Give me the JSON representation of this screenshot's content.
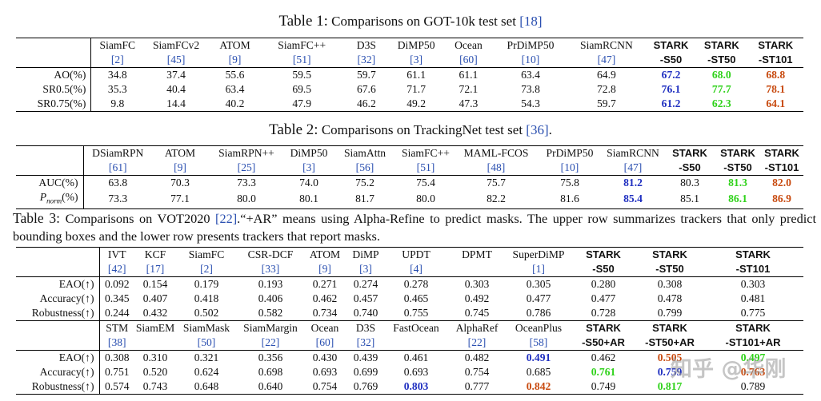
{
  "table1": {
    "label": "Table 1:",
    "title": "Comparisons on GOT-10k test set",
    "ref": "[18]",
    "headers": [
      {
        "name": "SiamFC",
        "ref": "[2]"
      },
      {
        "name": "SiamFCv2",
        "ref": "[45]"
      },
      {
        "name": "ATOM",
        "ref": "[9]"
      },
      {
        "name": "SiamFC++",
        "ref": "[51]"
      },
      {
        "name": "D3S",
        "ref": "[32]"
      },
      {
        "name": "DiMP50",
        "ref": "[3]"
      },
      {
        "name": "Ocean",
        "ref": "[60]"
      },
      {
        "name": "PrDiMP50",
        "ref": "[10]"
      },
      {
        "name": "SiamRCNN",
        "ref": "[47]"
      },
      {
        "name": "STARK",
        "ref": "-S50",
        "bold": true
      },
      {
        "name": "STARK",
        "ref": "-ST50",
        "bold": true
      },
      {
        "name": "STARK",
        "ref": "-ST101",
        "bold": true
      }
    ],
    "rows": [
      {
        "label": "AO(%)",
        "values": [
          "34.8",
          "37.4",
          "55.6",
          "59.5",
          "59.7",
          "61.1",
          "61.1",
          "63.4",
          "64.9",
          "67.2",
          "68.0",
          "68.8"
        ],
        "colors": [
          "",
          "",
          "",
          "",
          "",
          "",
          "",
          "",
          "",
          "blue",
          "green",
          "red"
        ]
      },
      {
        "label": "SR0.5(%)",
        "values": [
          "35.3",
          "40.4",
          "63.4",
          "69.5",
          "67.6",
          "71.7",
          "72.1",
          "73.8",
          "72.8",
          "76.1",
          "77.7",
          "78.1"
        ],
        "colors": [
          "",
          "",
          "",
          "",
          "",
          "",
          "",
          "",
          "",
          "blue",
          "green",
          "red"
        ]
      },
      {
        "label": "SR0.75(%)",
        "values": [
          "9.8",
          "14.4",
          "40.2",
          "47.9",
          "46.2",
          "49.2",
          "47.3",
          "54.3",
          "59.7",
          "61.2",
          "62.3",
          "64.1"
        ],
        "colors": [
          "",
          "",
          "",
          "",
          "",
          "",
          "",
          "",
          "",
          "blue",
          "green",
          "red"
        ]
      }
    ]
  },
  "table2": {
    "label": "Table 2:",
    "title": "Comparisons on TrackingNet test set",
    "ref": "[36]",
    "suffix": ".",
    "headers": [
      {
        "name": "DSiamRPN",
        "ref": "[61]"
      },
      {
        "name": "ATOM",
        "ref": "[9]"
      },
      {
        "name": "SiamRPN++",
        "ref": "[25]"
      },
      {
        "name": "DiMP50",
        "ref": "[3]"
      },
      {
        "name": "SiamAttn",
        "ref": "[56]"
      },
      {
        "name": "SiamFC++",
        "ref": "[51]"
      },
      {
        "name": "MAML-FCOS",
        "ref": "[48]"
      },
      {
        "name": "PrDiMP50",
        "ref": "[10]"
      },
      {
        "name": "SiamRCNN",
        "ref": "[47]"
      },
      {
        "name": "STARK",
        "ref": "-S50",
        "bold": true
      },
      {
        "name": "STARK",
        "ref": "-ST50",
        "bold": true
      },
      {
        "name": "STARK",
        "ref": "-ST101",
        "bold": true
      }
    ],
    "rows": [
      {
        "label": "AUC(%)",
        "values": [
          "63.8",
          "70.3",
          "73.3",
          "74.0",
          "75.2",
          "75.4",
          "75.7",
          "75.8",
          "81.2",
          "80.3",
          "81.3",
          "82.0"
        ],
        "colors": [
          "",
          "",
          "",
          "",
          "",
          "",
          "",
          "",
          "blue",
          "",
          "green",
          "red"
        ]
      },
      {
        "label": "P_norm(%)",
        "label_main": "P",
        "label_sub": "norm",
        "label_tail": "(%)",
        "values": [
          "73.3",
          "77.1",
          "80.0",
          "80.1",
          "81.7",
          "80.0",
          "82.2",
          "81.6",
          "85.4",
          "85.1",
          "86.1",
          "86.9"
        ],
        "colors": [
          "",
          "",
          "",
          "",
          "",
          "",
          "",
          "",
          "blue",
          "",
          "green",
          "red"
        ]
      }
    ]
  },
  "table3": {
    "label": "Table 3:",
    "caption_pre": "Comparisons on VOT2020",
    "caption_ref": "[22]",
    "caption_post": ".“+AR” means using Alpha-Refine to predict masks. The upper row summarizes trackers that only predict bounding boxes and the lower row presents trackers that report masks.",
    "upper_headers": [
      {
        "name": "IVT",
        "ref": "[42]"
      },
      {
        "name": "KCF",
        "ref": "[17]"
      },
      {
        "name": "SiamFC",
        "ref": "[2]"
      },
      {
        "name": "CSR-DCF",
        "ref": "[33]"
      },
      {
        "name": "ATOM",
        "ref": "[9]"
      },
      {
        "name": "DiMP",
        "ref": "[3]"
      },
      {
        "name": "UPDT",
        "ref": "[4]"
      },
      {
        "name": "DPMT",
        "ref": ""
      },
      {
        "name": "SuperDiMP",
        "ref": "[1]"
      },
      {
        "name": "STARK",
        "ref": "-S50",
        "bold": true
      },
      {
        "name": "STARK",
        "ref": "-ST50",
        "bold": true
      },
      {
        "name": "STARK",
        "ref": "-ST101",
        "bold": true
      }
    ],
    "upper_rows": [
      {
        "label": "EAO(↑)",
        "values": [
          "0.092",
          "0.154",
          "0.179",
          "0.193",
          "0.271",
          "0.274",
          "0.278",
          "0.303",
          "0.305",
          "0.280",
          "0.308",
          "0.303"
        ],
        "colors": [
          "",
          "",
          "",
          "",
          "",
          "",
          "",
          "",
          "",
          "",
          "",
          ""
        ]
      },
      {
        "label": "Accuracy(↑)",
        "values": [
          "0.345",
          "0.407",
          "0.418",
          "0.406",
          "0.462",
          "0.457",
          "0.465",
          "0.492",
          "0.477",
          "0.477",
          "0.478",
          "0.481"
        ],
        "colors": [
          "",
          "",
          "",
          "",
          "",
          "",
          "",
          "",
          "",
          "",
          "",
          ""
        ]
      },
      {
        "label": "Robustness(↑)",
        "values": [
          "0.244",
          "0.432",
          "0.502",
          "0.582",
          "0.734",
          "0.740",
          "0.755",
          "0.745",
          "0.786",
          "0.728",
          "0.799",
          "0.775"
        ],
        "colors": [
          "",
          "",
          "",
          "",
          "",
          "",
          "",
          "",
          "",
          "",
          "",
          ""
        ]
      }
    ],
    "lower_headers": [
      {
        "name": "STM",
        "ref": "[38]"
      },
      {
        "name": "SiamEM",
        "ref": ""
      },
      {
        "name": "SiamMask",
        "ref": "[50]"
      },
      {
        "name": "SiamMargin",
        "ref": "[22]"
      },
      {
        "name": "Ocean",
        "ref": "[60]"
      },
      {
        "name": "D3S",
        "ref": "[32]"
      },
      {
        "name": "FastOcean",
        "ref": ""
      },
      {
        "name": "AlphaRef",
        "ref": "[22]"
      },
      {
        "name": "OceanPlus",
        "ref": "[58]"
      },
      {
        "name": "STARK",
        "ref": "-S50+AR",
        "bold": true
      },
      {
        "name": "STARK",
        "ref": "-ST50+AR",
        "bold": true
      },
      {
        "name": "STARK",
        "ref": "-ST101+AR",
        "bold": true
      }
    ],
    "lower_rows": [
      {
        "label": "EAO(↑)",
        "values": [
          "0.308",
          "0.310",
          "0.321",
          "0.356",
          "0.430",
          "0.439",
          "0.461",
          "0.482",
          "0.491",
          "0.462",
          "0.505",
          "0.497"
        ],
        "colors": [
          "",
          "",
          "",
          "",
          "",
          "",
          "",
          "",
          "blue",
          "",
          "red",
          "green"
        ]
      },
      {
        "label": "Accuracy(↑)",
        "values": [
          "0.751",
          "0.520",
          "0.624",
          "0.698",
          "0.693",
          "0.699",
          "0.693",
          "0.754",
          "0.685",
          "0.761",
          "0.759",
          "0.763"
        ],
        "colors": [
          "",
          "",
          "",
          "",
          "",
          "",
          "",
          "",
          "",
          "green",
          "blue",
          "red"
        ]
      },
      {
        "label": "Robustness(↑)",
        "values": [
          "0.574",
          "0.743",
          "0.648",
          "0.640",
          "0.754",
          "0.769",
          "0.803",
          "0.777",
          "0.842",
          "0.749",
          "0.817",
          "0.789"
        ],
        "colors": [
          "",
          "",
          "",
          "",
          "",
          "",
          "blue",
          "",
          "red",
          "",
          "green",
          ""
        ]
      }
    ]
  },
  "watermark": {
    "text": "知乎 @华刚"
  }
}
